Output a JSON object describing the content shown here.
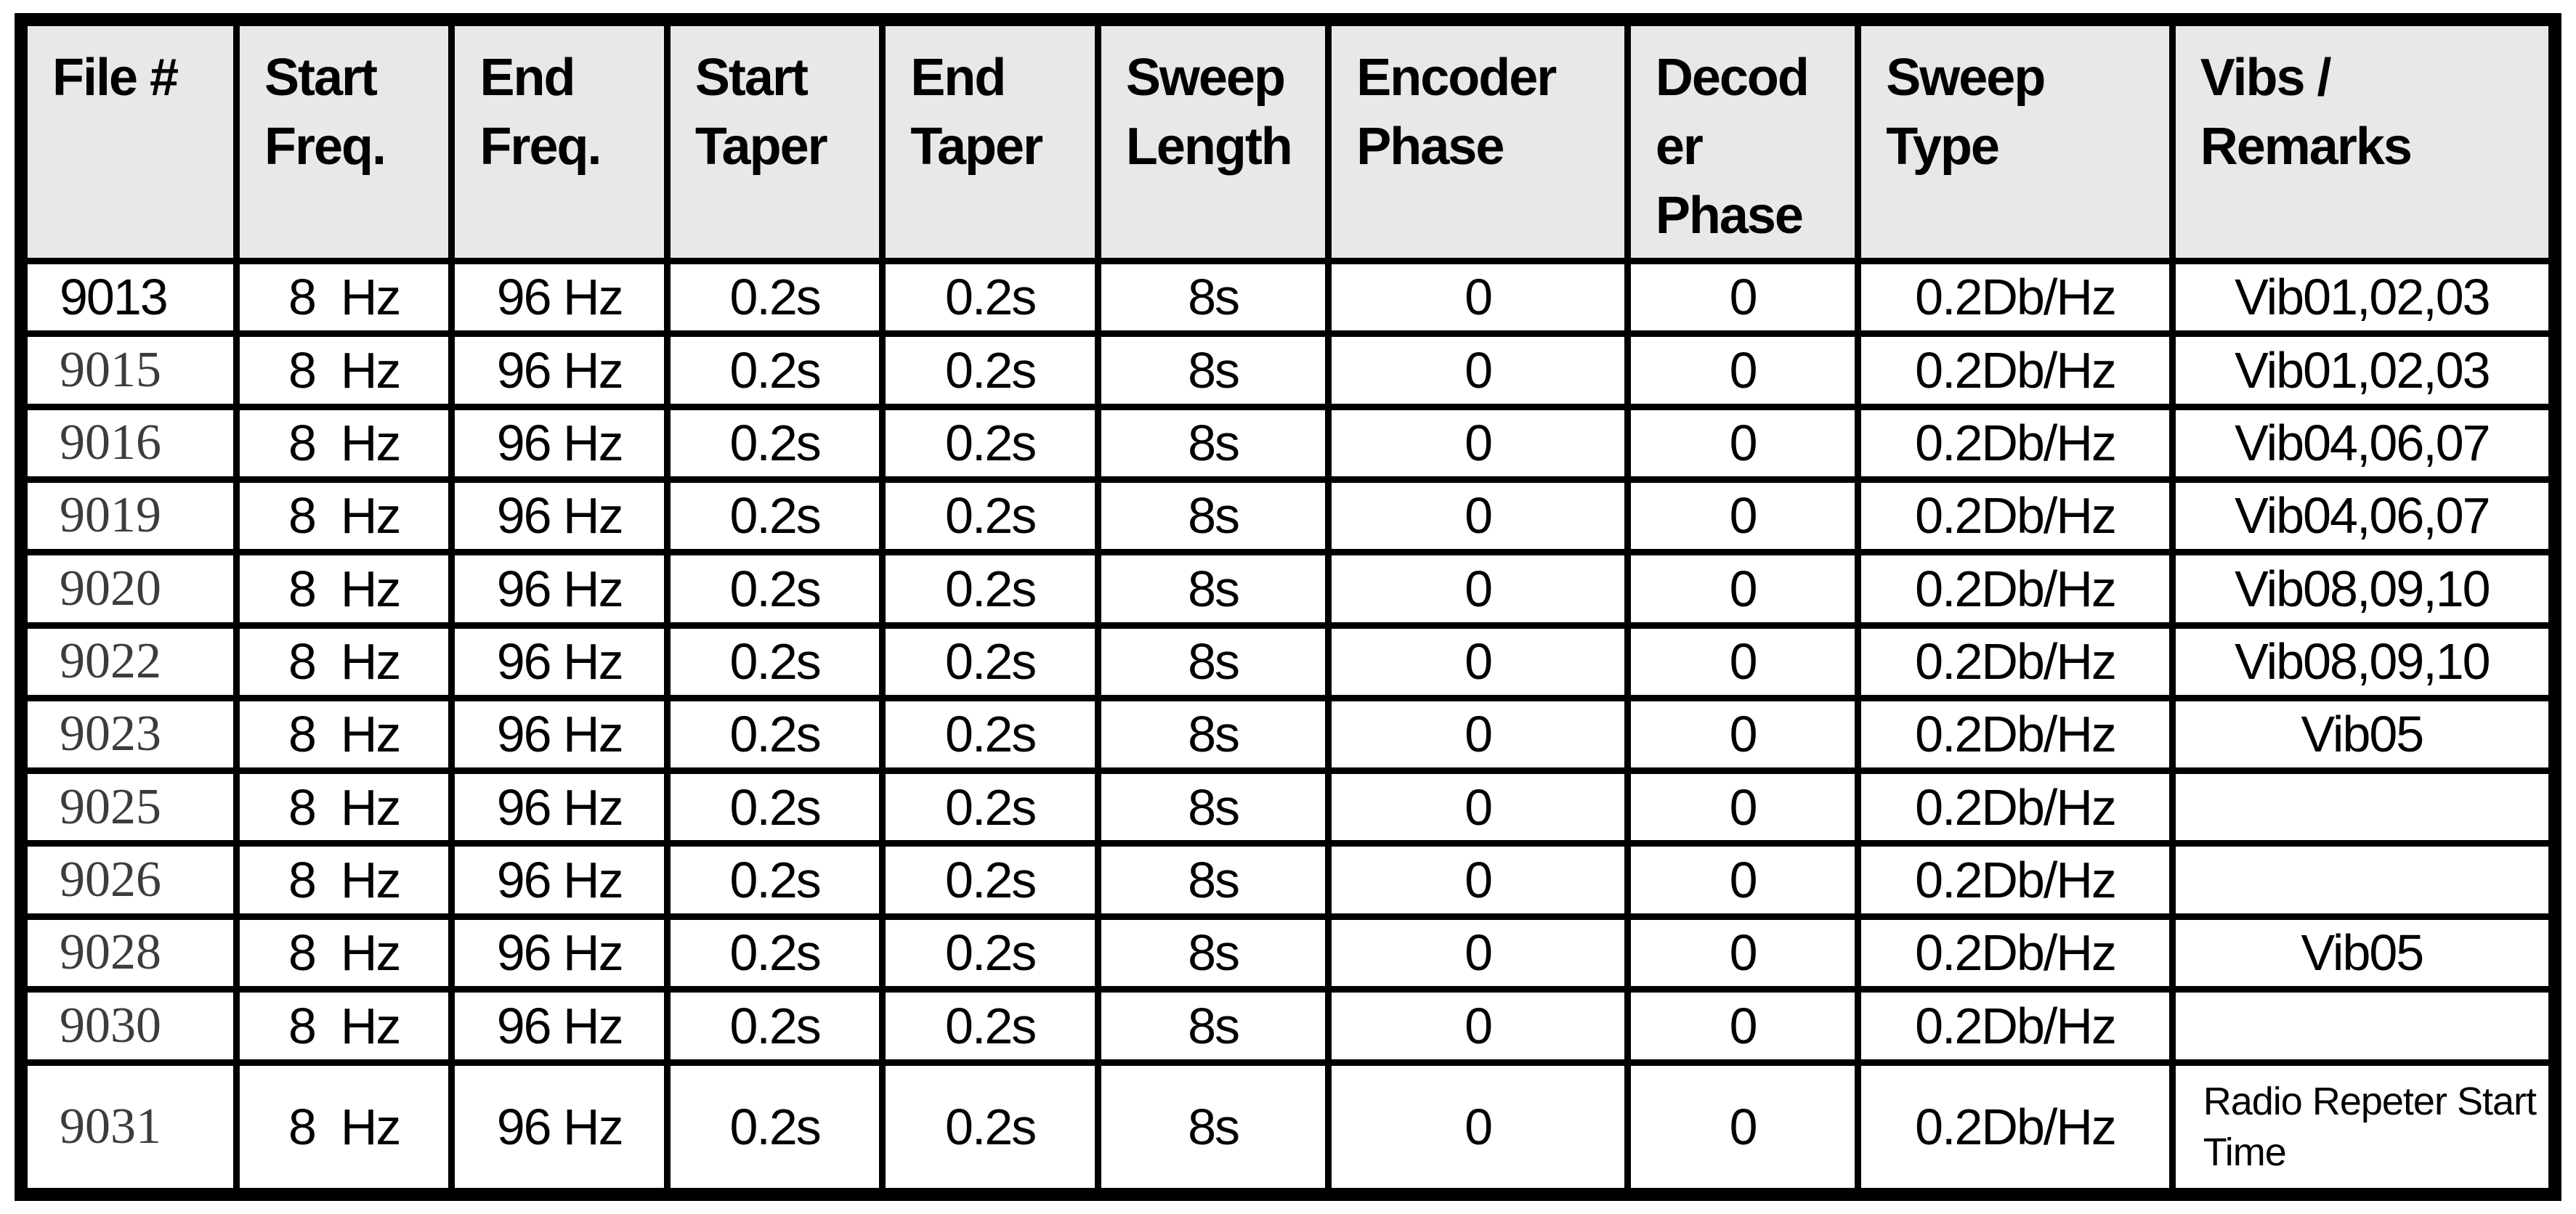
{
  "table": {
    "colors": {
      "header_bg": "#e8e8e8",
      "border": "#000000",
      "text": "#000000"
    },
    "columns": [
      {
        "key": "file",
        "label": "File #"
      },
      {
        "key": "start_freq",
        "label": "Start\nFreq."
      },
      {
        "key": "end_freq",
        "label": "End\nFreq."
      },
      {
        "key": "start_taper",
        "label": "Start\nTaper"
      },
      {
        "key": "end_taper",
        "label": "End\nTaper"
      },
      {
        "key": "sweep_length",
        "label": "Sweep\nLength"
      },
      {
        "key": "encoder_phase",
        "label": "Encoder\nPhase"
      },
      {
        "key": "decoder_phase",
        "label": "Decod\ner\nPhase"
      },
      {
        "key": "sweep_type",
        "label": "Sweep\nType"
      },
      {
        "key": "remarks",
        "label": "Vibs /\nRemarks"
      }
    ],
    "rows": [
      {
        "file": "9013",
        "file_serif": false,
        "start_freq": "8  Hz",
        "end_freq": "96 Hz",
        "start_taper": "0.2s",
        "end_taper": "0.2s",
        "sweep_length": "8s",
        "encoder_phase": "0",
        "decoder_phase": "0",
        "sweep_type": "0.2Db/Hz",
        "remarks": "Vib01,02,03"
      },
      {
        "file": "9015",
        "file_serif": true,
        "start_freq": "8  Hz",
        "end_freq": "96 Hz",
        "start_taper": "0.2s",
        "end_taper": "0.2s",
        "sweep_length": "8s",
        "encoder_phase": "0",
        "decoder_phase": "0",
        "sweep_type": "0.2Db/Hz",
        "remarks": "Vib01,02,03"
      },
      {
        "file": "9016",
        "file_serif": true,
        "start_freq": "8  Hz",
        "end_freq": "96 Hz",
        "start_taper": "0.2s",
        "end_taper": "0.2s",
        "sweep_length": "8s",
        "encoder_phase": "0",
        "decoder_phase": "0",
        "sweep_type": "0.2Db/Hz",
        "remarks": "Vib04,06,07"
      },
      {
        "file": "9019",
        "file_serif": true,
        "start_freq": "8  Hz",
        "end_freq": "96 Hz",
        "start_taper": "0.2s",
        "end_taper": "0.2s",
        "sweep_length": "8s",
        "encoder_phase": "0",
        "decoder_phase": "0",
        "sweep_type": "0.2Db/Hz",
        "remarks": "Vib04,06,07"
      },
      {
        "file": "9020",
        "file_serif": true,
        "start_freq": "8  Hz",
        "end_freq": "96 Hz",
        "start_taper": "0.2s",
        "end_taper": "0.2s",
        "sweep_length": "8s",
        "encoder_phase": "0",
        "decoder_phase": "0",
        "sweep_type": "0.2Db/Hz",
        "remarks": "Vib08,09,10"
      },
      {
        "file": "9022",
        "file_serif": true,
        "start_freq": "8  Hz",
        "end_freq": "96 Hz",
        "start_taper": "0.2s",
        "end_taper": "0.2s",
        "sweep_length": "8s",
        "encoder_phase": "0",
        "decoder_phase": "0",
        "sweep_type": "0.2Db/Hz",
        "remarks": "Vib08,09,10"
      },
      {
        "file": "9023",
        "file_serif": true,
        "start_freq": "8  Hz",
        "end_freq": "96 Hz",
        "start_taper": "0.2s",
        "end_taper": "0.2s",
        "sweep_length": "8s",
        "encoder_phase": "0",
        "decoder_phase": "0",
        "sweep_type": "0.2Db/Hz",
        "remarks": "Vib05"
      },
      {
        "file": "9025",
        "file_serif": true,
        "start_freq": "8  Hz",
        "end_freq": "96 Hz",
        "start_taper": "0.2s",
        "end_taper": "0.2s",
        "sweep_length": "8s",
        "encoder_phase": "0",
        "decoder_phase": "0",
        "sweep_type": "0.2Db/Hz",
        "remarks": ""
      },
      {
        "file": "9026",
        "file_serif": true,
        "start_freq": "8  Hz",
        "end_freq": "96 Hz",
        "start_taper": "0.2s",
        "end_taper": "0.2s",
        "sweep_length": "8s",
        "encoder_phase": "0",
        "decoder_phase": "0",
        "sweep_type": "0.2Db/Hz",
        "remarks": ""
      },
      {
        "file": "9028",
        "file_serif": true,
        "start_freq": "8  Hz",
        "end_freq": "96 Hz",
        "start_taper": "0.2s",
        "end_taper": "0.2s",
        "sweep_length": "8s",
        "encoder_phase": "0",
        "decoder_phase": "0",
        "sweep_type": "0.2Db/Hz",
        "remarks": "Vib05"
      },
      {
        "file": "9030",
        "file_serif": true,
        "start_freq": "8  Hz",
        "end_freq": "96 Hz",
        "start_taper": "0.2s",
        "end_taper": "0.2s",
        "sweep_length": "8s",
        "encoder_phase": "0",
        "decoder_phase": "0",
        "sweep_type": "0.2Db/Hz",
        "remarks": ""
      },
      {
        "file": "9031",
        "file_serif": true,
        "tall": true,
        "remarks_small": true,
        "start_freq": "8  Hz",
        "end_freq": "96 Hz",
        "start_taper": "0.2s",
        "end_taper": "0.2s",
        "sweep_length": "8s",
        "encoder_phase": "0",
        "decoder_phase": "0",
        "sweep_type": "0.2Db/Hz",
        "remarks": "Radio Repeter Start Time"
      }
    ]
  }
}
